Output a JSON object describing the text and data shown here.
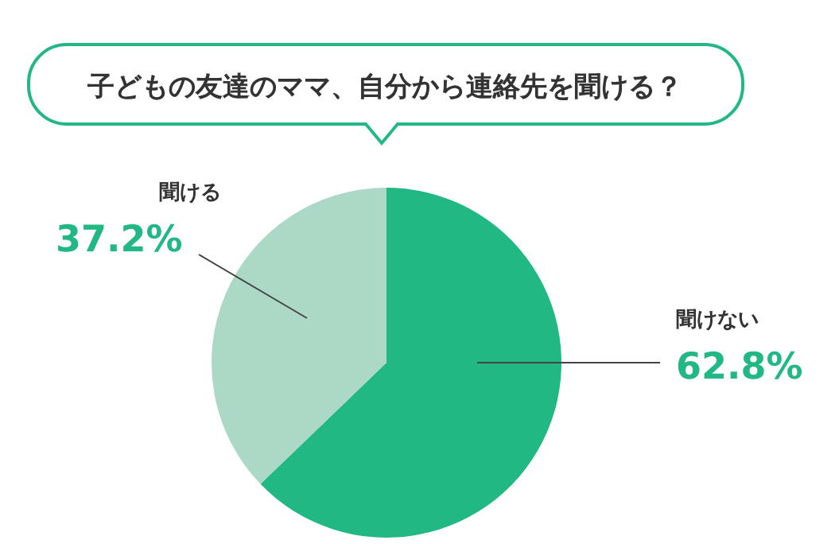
{
  "chart_data": {
    "type": "pie",
    "title": "子どもの友達のママ、自分から連絡先を聞ける？",
    "categories": [
      "聞けない",
      "聞ける"
    ],
    "values": [
      62.8,
      37.2
    ],
    "colors": [
      "#22b883",
      "#abd9c5"
    ],
    "value_labels": [
      "62.8%",
      "37.2%"
    ]
  }
}
